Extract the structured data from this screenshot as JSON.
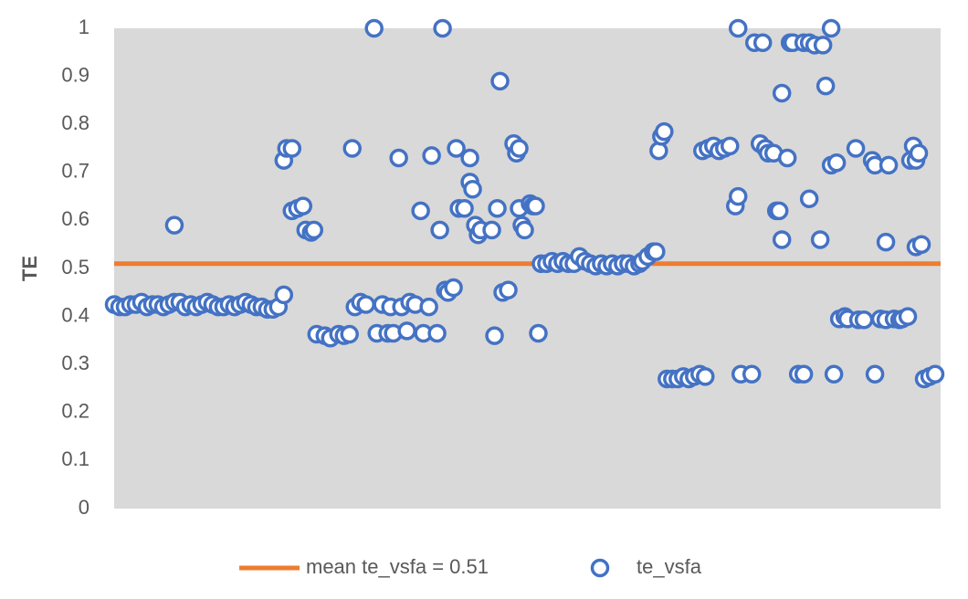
{
  "chart_data": {
    "type": "scatter",
    "ylabel": "TE",
    "xlim": [
      0,
      302
    ],
    "ylim": [
      0,
      1
    ],
    "yticks": [
      0,
      0.1,
      0.2,
      0.3,
      0.4,
      0.5,
      0.6,
      0.7,
      0.8,
      0.9,
      1
    ],
    "reference_line": {
      "name": "mean te_vsfa = 0.51",
      "value": 0.51,
      "color": "#ed7d31"
    },
    "series": [
      {
        "name": "te_vsfa",
        "color": "#4472c4",
        "x": [
          0,
          2,
          4,
          6,
          8,
          10,
          12,
          14,
          16,
          18,
          20,
          22,
          24,
          26,
          28,
          30,
          32,
          34,
          36,
          38,
          40,
          42,
          44,
          46,
          48,
          50,
          52,
          54,
          56,
          58,
          60,
          22,
          62,
          62,
          63,
          65,
          65,
          67,
          69,
          70,
          72,
          73,
          74,
          77,
          79,
          82,
          84,
          86,
          87,
          88,
          90,
          92,
          95,
          96,
          98,
          100,
          101,
          102,
          104,
          105,
          107,
          108,
          110,
          112,
          113,
          115,
          116,
          118,
          119,
          120,
          121,
          122,
          124,
          125,
          126,
          128,
          130,
          130,
          131,
          132,
          133,
          134,
          138,
          139,
          140,
          141,
          142,
          144,
          146,
          147,
          148,
          148,
          149,
          150,
          152,
          153,
          154,
          155,
          156,
          158,
          160,
          162,
          164,
          166,
          168,
          170,
          172,
          174,
          176,
          178,
          180,
          182,
          184,
          186,
          188,
          190,
          192,
          193,
          195,
          197,
          198,
          199,
          200,
          201,
          202,
          204,
          206,
          208,
          210,
          212,
          214,
          216,
          215,
          217,
          219,
          221,
          223,
          225,
          227,
          228,
          228,
          229,
          233,
          234,
          236,
          237,
          238,
          239,
          241,
          242,
          243,
          244,
          244,
          246,
          247,
          248,
          250,
          252,
          252,
          254,
          254,
          256,
          258,
          259,
          260,
          262,
          262,
          263,
          264,
          265,
          267,
          268,
          271,
          272,
          274,
          277,
          278,
          278,
          280,
          282,
          282,
          283,
          285,
          287,
          288,
          290,
          291,
          292,
          293,
          293,
          294,
          295,
          296,
          298,
          300
        ],
        "values": [
          0.425,
          0.42,
          0.42,
          0.425,
          0.425,
          0.43,
          0.42,
          0.425,
          0.425,
          0.42,
          0.425,
          0.43,
          0.43,
          0.42,
          0.425,
          0.42,
          0.425,
          0.43,
          0.425,
          0.42,
          0.42,
          0.425,
          0.42,
          0.425,
          0.43,
          0.425,
          0.42,
          0.42,
          0.415,
          0.415,
          0.42,
          0.59,
          0.445,
          0.725,
          0.75,
          0.75,
          0.62,
          0.625,
          0.63,
          0.58,
          0.575,
          0.58,
          0.363,
          0.36,
          0.355,
          0.363,
          0.36,
          0.363,
          0.75,
          0.42,
          0.43,
          0.425,
          1,
          0.365,
          0.425,
          0.365,
          0.42,
          0.365,
          0.73,
          0.42,
          0.37,
          0.43,
          0.425,
          0.62,
          0.365,
          0.42,
          0.735,
          0.365,
          0.58,
          1,
          0.455,
          0.45,
          0.46,
          0.75,
          0.625,
          0.625,
          0.73,
          0.68,
          0.665,
          0.59,
          0.57,
          0.58,
          0.58,
          0.36,
          0.625,
          0.89,
          0.45,
          0.455,
          0.76,
          0.74,
          0.75,
          0.625,
          0.59,
          0.58,
          0.635,
          0.63,
          0.63,
          0.365,
          0.51,
          0.51,
          0.515,
          0.51,
          0.515,
          0.51,
          0.51,
          0.525,
          0.515,
          0.51,
          0.505,
          0.51,
          0.505,
          0.51,
          0.505,
          0.51,
          0.51,
          0.505,
          0.51,
          0.515,
          0.525,
          0.535,
          0.535,
          0.745,
          0.775,
          0.785,
          0.27,
          0.27,
          0.27,
          0.275,
          0.27,
          0.275,
          0.28,
          0.275,
          0.745,
          0.75,
          0.755,
          0.745,
          0.75,
          0.755,
          0.63,
          0.65,
          1,
          0.28,
          0.28,
          0.97,
          0.76,
          0.97,
          0.75,
          0.74,
          0.74,
          0.62,
          0.62,
          0.865,
          0.56,
          0.73,
          0.97,
          0.97,
          0.28,
          0.28,
          0.97,
          0.645,
          0.97,
          0.965,
          0.56,
          0.965,
          0.88,
          1,
          0.715,
          0.28,
          0.72,
          0.395,
          0.4,
          0.395,
          0.75,
          0.393,
          0.393,
          0.725,
          0.715,
          0.28,
          0.395,
          0.393,
          0.555,
          0.715,
          0.395,
          0.393,
          0.395,
          0.4,
          0.725,
          0.755,
          0.725,
          0.545,
          0.74,
          0.55,
          0.27,
          0.275,
          0.28
        ]
      }
    ]
  }
}
